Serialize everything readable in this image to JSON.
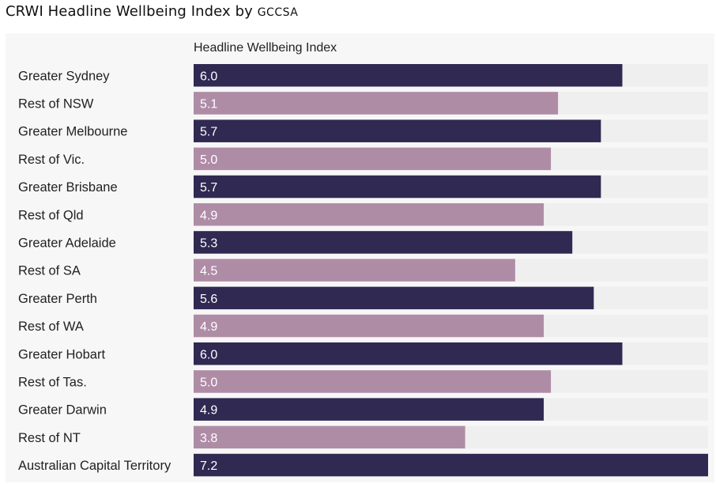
{
  "title": {
    "main": "CRWI Headline Wellbeing Index by",
    "group_by": "GCCSA"
  },
  "chart_data": {
    "type": "bar",
    "orientation": "horizontal",
    "column_header": "Headline Wellbeing Index",
    "xlim": [
      0,
      7.2
    ],
    "categories": [
      "Greater Sydney",
      "Rest of NSW",
      "Greater Melbourne",
      "Rest of Vic.",
      "Greater Brisbane",
      "Rest of Qld",
      "Greater Adelaide",
      "Rest of SA",
      "Greater Perth",
      "Rest of WA",
      "Greater Hobart",
      "Rest of Tas.",
      "Greater Darwin",
      "Rest of NT",
      "Australian Capital Territory"
    ],
    "values": [
      6.0,
      5.1,
      5.7,
      5.0,
      5.7,
      4.9,
      5.3,
      4.5,
      5.6,
      4.9,
      6.0,
      5.0,
      4.9,
      3.8,
      7.2
    ],
    "value_labels": [
      "6.0",
      "5.1",
      "5.7",
      "5.0",
      "5.7",
      "4.9",
      "5.3",
      "4.5",
      "5.6",
      "4.9",
      "6.0",
      "5.0",
      "4.9",
      "3.8",
      "7.2"
    ],
    "bar_type": [
      "greater",
      "rest",
      "greater",
      "rest",
      "greater",
      "rest",
      "greater",
      "rest",
      "greater",
      "rest",
      "greater",
      "rest",
      "greater",
      "rest",
      "greater"
    ],
    "colors": {
      "greater": "#302952",
      "rest": "#af8ca6",
      "track": "#efefef"
    },
    "grid": false,
    "legend": "none"
  }
}
